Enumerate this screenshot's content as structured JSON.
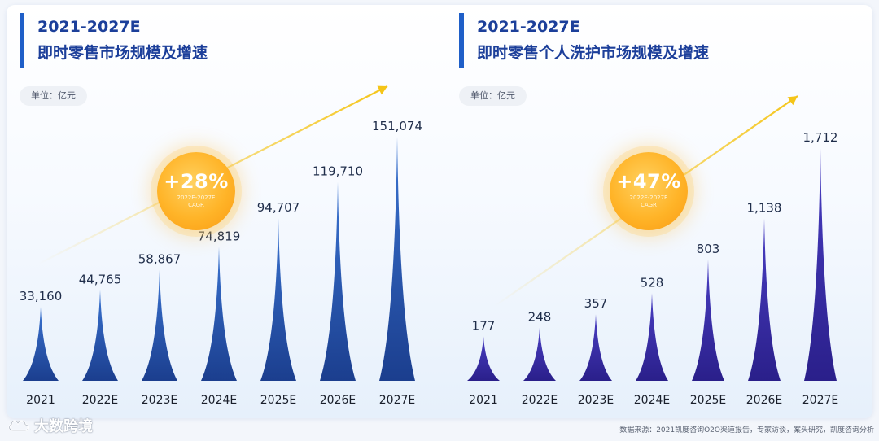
{
  "colors": {
    "accent": "#1f5fc8",
    "title": "#1c3f9a",
    "spike_left_top": "#3a74d2",
    "spike_left_bottom": "#1b3e8e",
    "spike_right_top": "#4a3fc4",
    "spike_right_bottom": "#2a1f8a",
    "arrow": "#f5c518",
    "badge": "#ffb428"
  },
  "panels": {
    "left": {
      "title_line1": "2021-2027E",
      "title_line2": "即时零售市场规模及增速",
      "unit": "单位：亿元",
      "cagr": {
        "value": "+28%",
        "sub1": "2022E-2027E",
        "sub2": "CAGR"
      }
    },
    "right": {
      "title_line1": "2021-2027E",
      "title_line2": "即时零售个人洗护市场规模及增速",
      "unit": "单位：亿元",
      "cagr": {
        "value": "+47%",
        "sub1": "2022E-2027E",
        "sub2": "CAGR"
      }
    }
  },
  "chart_data": [
    {
      "type": "bar",
      "title": "2021-2027E 即时零售市场规模及增速",
      "unit": "单位：亿元",
      "categories": [
        "2021",
        "2022E",
        "2023E",
        "2024E",
        "2025E",
        "2026E",
        "2027E"
      ],
      "values": [
        33160,
        44765,
        58867,
        74819,
        94707,
        119710,
        151074
      ],
      "value_labels": [
        "33,160",
        "44,765",
        "58,867",
        "74,819",
        "94,707",
        "119,710",
        "151,074"
      ],
      "annotation": "+28% 2022E-2027E CAGR",
      "ylim": [
        0,
        151074
      ],
      "grid": false,
      "legend": "none"
    },
    {
      "type": "bar",
      "title": "2021-2027E 即时零售个人洗护市场规模及增速",
      "unit": "单位：亿元",
      "categories": [
        "2021",
        "2022E",
        "2023E",
        "2024E",
        "2025E",
        "2026E",
        "2027E"
      ],
      "values": [
        177,
        248,
        357,
        528,
        803,
        1138,
        1712
      ],
      "value_labels": [
        "177",
        "248",
        "357",
        "528",
        "803",
        "1,138",
        "1,712"
      ],
      "annotation": "+47% 2022E-2027E CAGR",
      "ylim": [
        0,
        1712
      ],
      "grid": false,
      "legend": "none"
    }
  ],
  "footer": {
    "logo_text": "大数跨境",
    "logo_icon": "cloud-logo-icon",
    "source": "数据来源：2021凯度咨询O2O渠道报告，专家访谈，案头研究，凯度咨询分析"
  }
}
